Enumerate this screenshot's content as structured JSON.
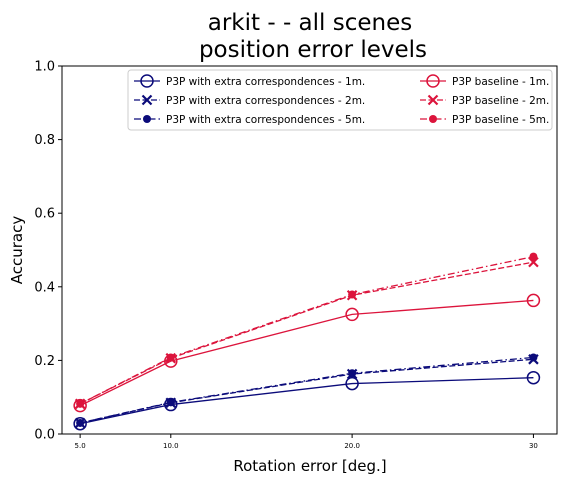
{
  "chart_data": {
    "type": "line",
    "title_line1": "arkit -  - all scenes",
    "title_line2": "position error levels",
    "xlabel": "Rotation error [deg.]",
    "ylabel": "Accuracy",
    "x": [
      5,
      10,
      20,
      30
    ],
    "x_tick_labels": [
      "5.0",
      "10.0",
      "20.0",
      "30"
    ],
    "ylim": [
      0,
      1
    ],
    "y_ticks": [
      0.0,
      0.2,
      0.4,
      0.6,
      0.8,
      1.0
    ],
    "y_tick_labels": [
      "0.0",
      "0.2",
      "0.4",
      "0.6",
      "0.8",
      "1.0"
    ],
    "grid": false,
    "legend_position": "top-right",
    "legend_columns": 2,
    "series": [
      {
        "name": "P3P with extra correspondences - 1m.",
        "color": "#0b0b7a",
        "marker": "circle-open",
        "line": "solid",
        "values": [
          0.028,
          0.08,
          0.137,
          0.153
        ]
      },
      {
        "name": "P3P with extra correspondences - 2m.",
        "color": "#0b0b7a",
        "marker": "x",
        "line": "dashed",
        "values": [
          0.03,
          0.085,
          0.163,
          0.203
        ]
      },
      {
        "name": "P3P with extra correspondences - 5m.",
        "color": "#0b0b7a",
        "marker": "dot",
        "line": "dashdot",
        "values": [
          0.03,
          0.086,
          0.165,
          0.208
        ]
      },
      {
        "name": "P3P baseline - 1m.",
        "color": "#dc143c",
        "marker": "circle-open",
        "line": "solid",
        "values": [
          0.077,
          0.198,
          0.325,
          0.363
        ]
      },
      {
        "name": "P3P baseline - 2m.",
        "color": "#dc143c",
        "marker": "x",
        "line": "dashed",
        "values": [
          0.082,
          0.206,
          0.377,
          0.467
        ]
      },
      {
        "name": "P3P baseline - 5m.",
        "color": "#dc143c",
        "marker": "dot",
        "line": "dashdot",
        "values": [
          0.082,
          0.208,
          0.379,
          0.482
        ]
      }
    ]
  }
}
